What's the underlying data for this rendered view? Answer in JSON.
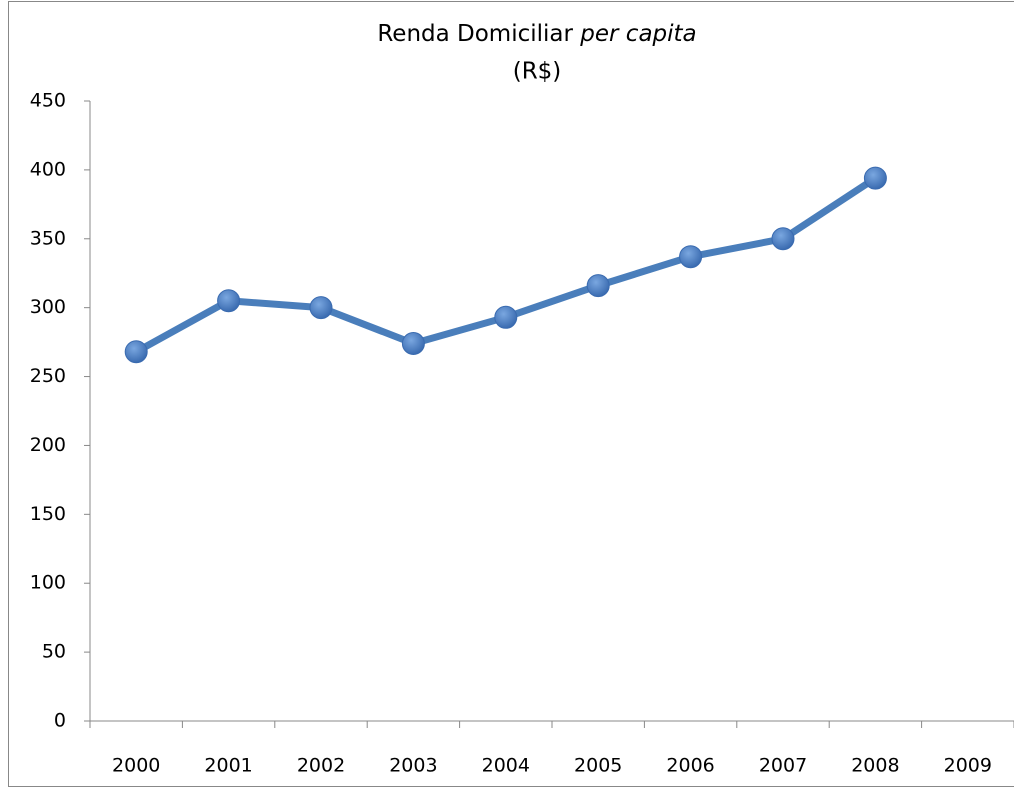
{
  "chart_data": {
    "type": "line",
    "title": [
      "Renda Domiciliar",
      "per capita"
    ],
    "subtitle": "(R$)",
    "categories": [
      "2000",
      "2001",
      "2002",
      "2003",
      "2004",
      "2005",
      "2006",
      "2007",
      "2008",
      "2009"
    ],
    "values": [
      268,
      305,
      300,
      274,
      293,
      316,
      337,
      350,
      394,
      null
    ],
    "color": "#4a7ebb",
    "ylim": [
      0,
      450
    ],
    "yticks": [
      0,
      50,
      100,
      150,
      200,
      250,
      300,
      350,
      400,
      450
    ],
    "grid": false
  }
}
